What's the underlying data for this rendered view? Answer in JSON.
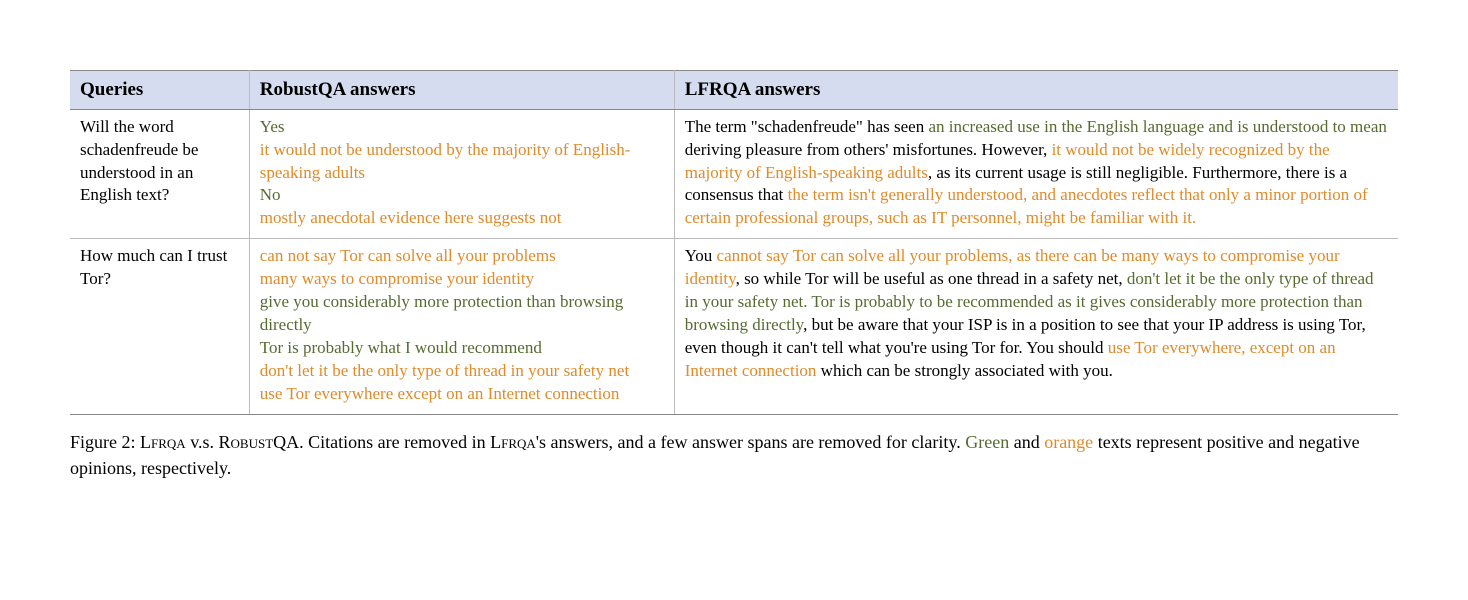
{
  "colors": {
    "header_bg": "#d5dcef",
    "positive": "#556b2f",
    "negative": "#de8b2a",
    "border_outer": "#888888",
    "border_inner": "#bbbbbb",
    "text": "#000000",
    "background": "#ffffff"
  },
  "type": "table",
  "columns": [
    {
      "key": "queries",
      "label": "Queries",
      "width_pct": 13.5
    },
    {
      "key": "robustqa",
      "label": "RobustQA answers",
      "width_pct": 32
    },
    {
      "key": "lfrqa",
      "label": "LFRQA answers",
      "width_pct": 54.5
    }
  ],
  "rows": [
    {
      "query": "Will the word schadenfreude be understood in an English text?",
      "robustqa": [
        {
          "t": "Yes",
          "c": "g",
          "br": true
        },
        {
          "t": "it would not be understood by the majority of English-speaking adults",
          "c": "o",
          "br": true
        },
        {
          "t": "No",
          "c": "g",
          "br": true
        },
        {
          "t": "mostly anecdotal evidence here suggests not",
          "c": "o"
        }
      ],
      "lfrqa": [
        {
          "t": "The term \"schadenfreude\" has seen "
        },
        {
          "t": "an increased use in the English language and is understood to mean",
          "c": "g"
        },
        {
          "t": " deriving pleasure from others' misfortunes. However, "
        },
        {
          "t": "it would not be widely recognized by the majority of English-speaking adults",
          "c": "o"
        },
        {
          "t": ", as its current usage is still negligible. Furthermore, there is a consensus that "
        },
        {
          "t": "the term isn't generally understood, and anecdotes reflect that only a minor portion of certain professional groups, such as IT personnel, might be familiar with it.",
          "c": "o"
        }
      ]
    },
    {
      "query": "How much can I trust Tor?",
      "robustqa": [
        {
          "t": "can not say Tor can solve all your problems",
          "c": "o",
          "br": true
        },
        {
          "t": "many ways to compromise your identity",
          "c": "o",
          "br": true
        },
        {
          "t": "give you considerably more protection than browsing directly",
          "c": "g",
          "br": true
        },
        {
          "t": "Tor is probably what I would recommend",
          "c": "g",
          "br": true
        },
        {
          "t": "don't let it be the only type of thread in your safety net",
          "c": "o",
          "br": true
        },
        {
          "t": "use Tor everywhere except on an Internet connection",
          "c": "o"
        }
      ],
      "lfrqa": [
        {
          "t": "You "
        },
        {
          "t": "cannot say Tor can solve all your problems, as there can be many ways to compromise your identity",
          "c": "o"
        },
        {
          "t": ", so while Tor will be useful as one thread in a safety net, "
        },
        {
          "t": "don't let it be the only type of thread in your safety net. Tor is probably to be recommended as it gives considerably more protection than browsing directly",
          "c": "g"
        },
        {
          "t": ", but be aware that your ISP is in a position to see that your IP address is using Tor, even though it can't tell what you're using Tor for. You should "
        },
        {
          "t": "use Tor everywhere, except on an Internet connection",
          "c": "o"
        },
        {
          "t": " which can be strongly associated with you."
        }
      ]
    }
  ],
  "caption": {
    "fig_label": "Figure 2: ",
    "name1": "Lfrqa",
    "vs": " v.s. ",
    "name2": "RobustQA",
    "after": ". Citations are removed in ",
    "name1b": "Lfrqa",
    "after2": "'s answers, and a few answer spans are removed for clarity. ",
    "green_word": "Green",
    "mid": " and ",
    "orange_word": "orange",
    "tail": " texts represent positive and negative opinions, respectively."
  }
}
